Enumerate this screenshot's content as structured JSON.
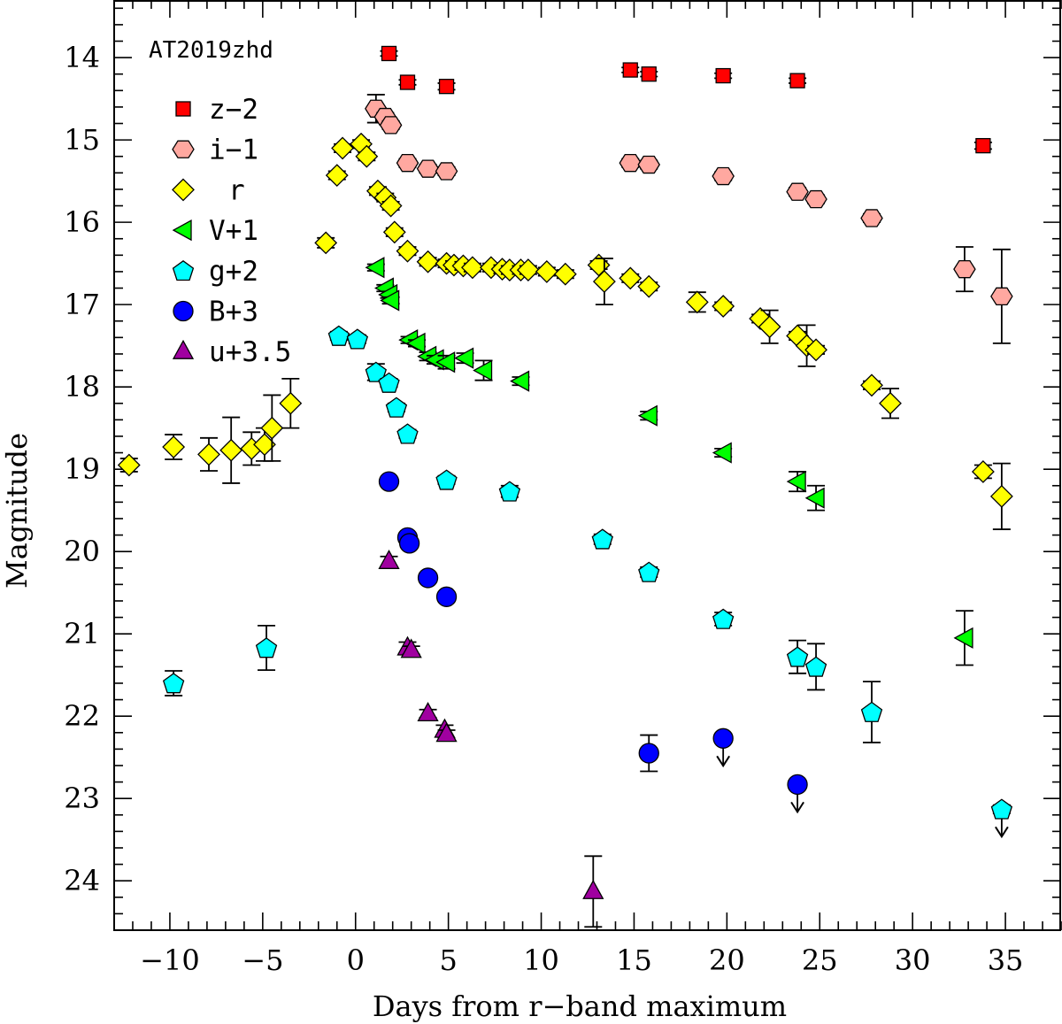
{
  "chart_data": {
    "type": "scatter",
    "title": "AT2019zhd",
    "xlabel": "Days from r−band maximum",
    "ylabel": "Magnitude",
    "xlim": [
      -13,
      38
    ],
    "ylim": [
      24.6,
      13.3
    ],
    "y_inverted": true,
    "x_ticks": [
      -10,
      -5,
      0,
      5,
      10,
      15,
      20,
      25,
      30,
      35
    ],
    "x_tick_labels": [
      "−10",
      "−5",
      "0",
      "5",
      "10",
      "15",
      "20",
      "25",
      "30",
      "35"
    ],
    "y_ticks": [
      14,
      15,
      16,
      17,
      18,
      19,
      20,
      21,
      22,
      23,
      24
    ],
    "y_tick_labels": [
      "14",
      "15",
      "16",
      "17",
      "18",
      "19",
      "20",
      "21",
      "22",
      "23",
      "24"
    ],
    "x_minor_step": 1,
    "y_minor_step": 0.2,
    "series": [
      {
        "name": "z−2",
        "marker": "square",
        "color": "#ff0000",
        "points": [
          {
            "x": 1.8,
            "y": 13.95,
            "err": 0.03
          },
          {
            "x": 2.8,
            "y": 14.3,
            "err": 0.03
          },
          {
            "x": 4.9,
            "y": 14.35,
            "err": 0.04
          },
          {
            "x": 14.8,
            "y": 14.15,
            "err": 0.03
          },
          {
            "x": 15.8,
            "y": 14.2,
            "err": 0.03
          },
          {
            "x": 19.8,
            "y": 14.22,
            "err": 0.03
          },
          {
            "x": 23.8,
            "y": 14.28,
            "err": 0.03
          },
          {
            "x": 33.8,
            "y": 15.07,
            "err": 0.04
          }
        ]
      },
      {
        "name": "i−1",
        "marker": "hexagon",
        "color": "#ffa8a0",
        "points": [
          {
            "x": 1.1,
            "y": 14.62,
            "err": 0.17
          },
          {
            "x": 1.6,
            "y": 14.72,
            "err": 0.05
          },
          {
            "x": 1.9,
            "y": 14.82,
            "err": 0.05
          },
          {
            "x": 2.8,
            "y": 15.28,
            "err": 0.05
          },
          {
            "x": 3.9,
            "y": 15.35,
            "err": 0.05
          },
          {
            "x": 4.9,
            "y": 15.38,
            "err": 0.05
          },
          {
            "x": 14.8,
            "y": 15.28,
            "err": 0.05
          },
          {
            "x": 15.8,
            "y": 15.3,
            "err": 0.05
          },
          {
            "x": 19.8,
            "y": 15.44,
            "err": 0.05
          },
          {
            "x": 23.8,
            "y": 15.63,
            "err": 0.05
          },
          {
            "x": 24.8,
            "y": 15.72,
            "err": 0.05
          },
          {
            "x": 27.8,
            "y": 15.95,
            "err": 0.05
          },
          {
            "x": 32.8,
            "y": 16.57,
            "err": 0.27
          },
          {
            "x": 34.8,
            "y": 16.9,
            "err": 0.57
          }
        ]
      },
      {
        "name": "r",
        "marker": "diamond",
        "color": "#ffff00",
        "points": [
          {
            "x": -12.2,
            "y": 18.95,
            "err": 0.08
          },
          {
            "x": -9.8,
            "y": 18.73,
            "err": 0.15
          },
          {
            "x": -7.9,
            "y": 18.82,
            "err": 0.2
          },
          {
            "x": -6.7,
            "y": 18.77,
            "err": 0.4
          },
          {
            "x": -5.6,
            "y": 18.75,
            "err": 0.2
          },
          {
            "x": -4.9,
            "y": 18.7,
            "err": 0.2
          },
          {
            "x": -4.5,
            "y": 18.5,
            "err": 0.4
          },
          {
            "x": -3.5,
            "y": 18.2,
            "err": 0.3
          },
          {
            "x": -1.6,
            "y": 16.25,
            "err": 0.06
          },
          {
            "x": -1.0,
            "y": 15.43,
            "err": 0.05
          },
          {
            "x": -0.7,
            "y": 15.1,
            "err": 0.05
          },
          {
            "x": 0.3,
            "y": 15.05,
            "err": 0.05
          },
          {
            "x": 0.6,
            "y": 15.2,
            "err": 0.05
          },
          {
            "x": 1.2,
            "y": 15.62,
            "err": 0.05
          },
          {
            "x": 1.6,
            "y": 15.7,
            "err": 0.05
          },
          {
            "x": 1.9,
            "y": 15.8,
            "err": 0.05
          },
          {
            "x": 2.1,
            "y": 16.12,
            "err": 0.05
          },
          {
            "x": 2.8,
            "y": 16.35,
            "err": 0.05
          },
          {
            "x": 3.9,
            "y": 16.48,
            "err": 0.05
          },
          {
            "x": 4.9,
            "y": 16.5,
            "err": 0.05
          },
          {
            "x": 5.3,
            "y": 16.52,
            "err": 0.05
          },
          {
            "x": 5.8,
            "y": 16.53,
            "err": 0.05
          },
          {
            "x": 6.3,
            "y": 16.55,
            "err": 0.05
          },
          {
            "x": 7.3,
            "y": 16.55,
            "err": 0.05
          },
          {
            "x": 7.9,
            "y": 16.57,
            "err": 0.05
          },
          {
            "x": 8.3,
            "y": 16.58,
            "err": 0.05
          },
          {
            "x": 8.9,
            "y": 16.58,
            "err": 0.05
          },
          {
            "x": 9.3,
            "y": 16.58,
            "err": 0.05
          },
          {
            "x": 10.3,
            "y": 16.6,
            "err": 0.05
          },
          {
            "x": 11.3,
            "y": 16.63,
            "err": 0.05
          },
          {
            "x": 13.1,
            "y": 16.52,
            "err": 0.05
          },
          {
            "x": 13.4,
            "y": 16.72,
            "err": 0.28
          },
          {
            "x": 14.8,
            "y": 16.68,
            "err": 0.05
          },
          {
            "x": 15.8,
            "y": 16.78,
            "err": 0.05
          },
          {
            "x": 18.4,
            "y": 16.97,
            "err": 0.12
          },
          {
            "x": 19.8,
            "y": 17.02,
            "err": 0.05
          },
          {
            "x": 21.8,
            "y": 17.17,
            "err": 0.05
          },
          {
            "x": 22.3,
            "y": 17.27,
            "err": 0.2
          },
          {
            "x": 23.8,
            "y": 17.38,
            "err": 0.05
          },
          {
            "x": 24.3,
            "y": 17.5,
            "err": 0.25
          },
          {
            "x": 24.8,
            "y": 17.55,
            "err": 0.05
          },
          {
            "x": 27.8,
            "y": 17.98,
            "err": 0.05
          },
          {
            "x": 28.8,
            "y": 18.2,
            "err": 0.18
          },
          {
            "x": 33.8,
            "y": 19.03,
            "err": 0.08
          },
          {
            "x": 34.8,
            "y": 19.33,
            "err": 0.4
          }
        ]
      },
      {
        "name": "V+1",
        "marker": "triangle-left",
        "color": "#00ff00",
        "points": [
          {
            "x": 1.1,
            "y": 16.55,
            "err": 0.04
          },
          {
            "x": 1.6,
            "y": 16.8,
            "err": 0.04
          },
          {
            "x": 1.8,
            "y": 16.88,
            "err": 0.04
          },
          {
            "x": 1.9,
            "y": 16.95,
            "err": 0.04
          },
          {
            "x": 2.9,
            "y": 17.43,
            "err": 0.04
          },
          {
            "x": 3.3,
            "y": 17.47,
            "err": 0.04
          },
          {
            "x": 3.9,
            "y": 17.63,
            "err": 0.05
          },
          {
            "x": 4.3,
            "y": 17.67,
            "err": 0.05
          },
          {
            "x": 4.9,
            "y": 17.7,
            "err": 0.08
          },
          {
            "x": 5.9,
            "y": 17.65,
            "err": 0.06
          },
          {
            "x": 6.9,
            "y": 17.8,
            "err": 0.12
          },
          {
            "x": 8.9,
            "y": 17.93,
            "err": 0.05
          },
          {
            "x": 15.8,
            "y": 18.35,
            "err": 0.05
          },
          {
            "x": 19.8,
            "y": 18.8,
            "err": 0.05
          },
          {
            "x": 23.8,
            "y": 19.15,
            "err": 0.12
          },
          {
            "x": 24.8,
            "y": 19.35,
            "err": 0.15
          },
          {
            "x": 32.8,
            "y": 21.05,
            "err": 0.33
          }
        ]
      },
      {
        "name": "g+2",
        "marker": "pentagon",
        "color": "#00ffff",
        "points": [
          {
            "x": -9.8,
            "y": 21.6,
            "err": 0.15
          },
          {
            "x": -4.8,
            "y": 21.17,
            "err": 0.27
          },
          {
            "x": -0.9,
            "y": 17.38,
            "err": 0.05
          },
          {
            "x": 0.1,
            "y": 17.42,
            "err": 0.05
          },
          {
            "x": 1.1,
            "y": 17.82,
            "err": 0.1
          },
          {
            "x": 1.8,
            "y": 17.95,
            "err": 0.05
          },
          {
            "x": 2.2,
            "y": 18.25,
            "err": 0.05
          },
          {
            "x": 2.8,
            "y": 18.57,
            "err": 0.05
          },
          {
            "x": 4.9,
            "y": 19.13,
            "err": 0.05
          },
          {
            "x": 8.3,
            "y": 19.27,
            "err": 0.07
          },
          {
            "x": 13.3,
            "y": 19.85,
            "err": 0.06
          },
          {
            "x": 15.8,
            "y": 20.25,
            "err": 0.06
          },
          {
            "x": 19.8,
            "y": 20.82,
            "err": 0.08
          },
          {
            "x": 23.8,
            "y": 21.28,
            "err": 0.2
          },
          {
            "x": 24.8,
            "y": 21.4,
            "err": 0.28
          },
          {
            "x": 27.8,
            "y": 21.95,
            "err": 0.37
          },
          {
            "x": 34.8,
            "y": 23.13,
            "err": 0.05,
            "upper_limit": true
          }
        ]
      },
      {
        "name": "B+3",
        "marker": "circle",
        "color": "#0000ff",
        "points": [
          {
            "x": 1.8,
            "y": 19.15,
            "err": 0.05
          },
          {
            "x": 2.8,
            "y": 19.83,
            "err": 0.05
          },
          {
            "x": 2.9,
            "y": 19.9,
            "err": 0.05
          },
          {
            "x": 3.9,
            "y": 20.32,
            "err": 0.05
          },
          {
            "x": 4.9,
            "y": 20.55,
            "err": 0.05
          },
          {
            "x": 15.8,
            "y": 22.45,
            "err": 0.22
          },
          {
            "x": 19.8,
            "y": 22.27,
            "err": 0.05,
            "upper_limit": true
          },
          {
            "x": 23.8,
            "y": 22.83,
            "err": 0.05,
            "upper_limit": true
          }
        ]
      },
      {
        "name": "u+3.5",
        "marker": "triangle-up",
        "color": "#a000a0",
        "points": [
          {
            "x": 1.8,
            "y": 20.12,
            "err": 0.06
          },
          {
            "x": 2.8,
            "y": 21.17,
            "err": 0.07
          },
          {
            "x": 3.0,
            "y": 21.2,
            "err": 0.05
          },
          {
            "x": 3.9,
            "y": 21.97,
            "err": 0.05
          },
          {
            "x": 4.8,
            "y": 22.17,
            "err": 0.06
          },
          {
            "x": 4.9,
            "y": 22.22,
            "err": 0.05
          },
          {
            "x": 12.8,
            "y": 24.13,
            "err": 0.43
          }
        ]
      }
    ]
  }
}
